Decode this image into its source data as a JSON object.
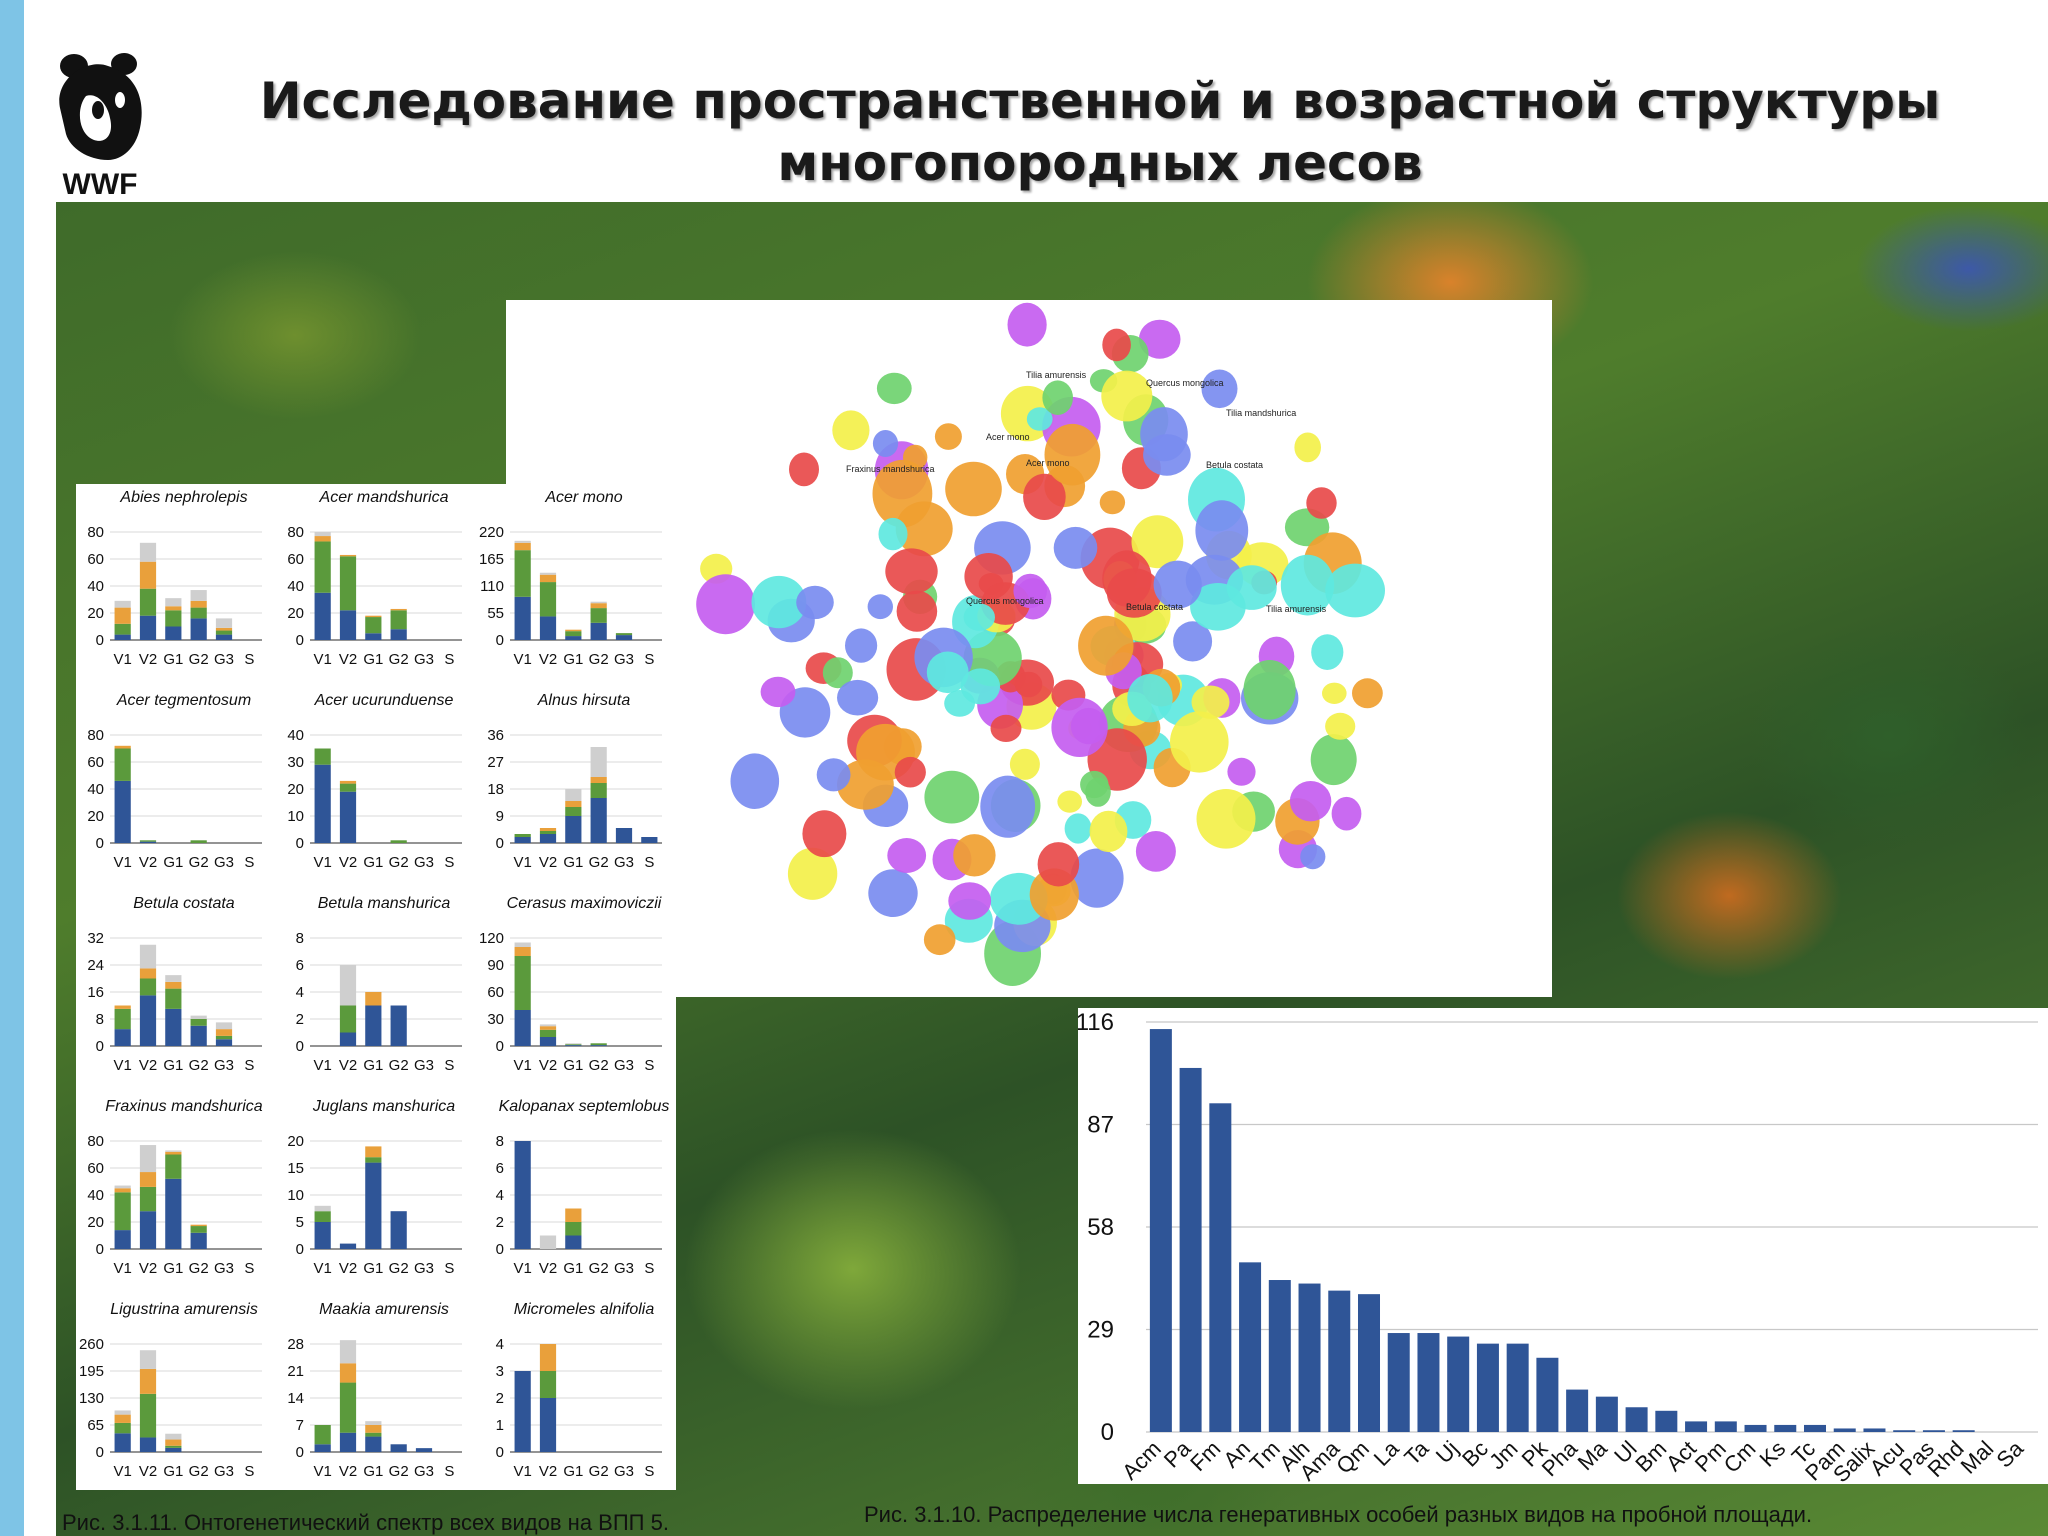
{
  "title": {
    "line1": "Исследование пространственной и возрастной структуры",
    "line2": "многопородных лесов"
  },
  "logo": {
    "text": "WWF",
    "icon": "panda-icon"
  },
  "colors": {
    "band": "#7ec4e6",
    "v_blue": "#2f5597",
    "green": "#5b9a3c",
    "orange": "#e9a03b",
    "gray": "#cfcfcf",
    "bar": "#2f5597"
  },
  "captions": {
    "left": "Рис. 3.1.11. Онтогенетический спектр всех видов на ВПП 5.",
    "right": "Рис. 3.1.10. Распределение числа генеративных особей разных видов на пробной площади."
  },
  "chart_data": [
    {
      "type": "bar",
      "stacked": true,
      "title": "",
      "categories": [
        "V1",
        "V2",
        "G1",
        "G2",
        "G3",
        "S"
      ],
      "series_order": [
        "blue",
        "green",
        "orange",
        "gray"
      ],
      "small_multiples": [
        {
          "species": "Abies nephrolepis",
          "ticks": [
            0,
            20,
            40,
            60,
            80
          ],
          "stacks": [
            [
              4,
              8,
              12,
              5
            ],
            [
              18,
              20,
              20,
              14
            ],
            [
              10,
              12,
              3,
              6
            ],
            [
              16,
              8,
              5,
              8
            ],
            [
              4,
              3,
              2,
              7
            ],
            [
              0,
              0,
              0,
              0
            ]
          ]
        },
        {
          "species": "Acer mandshurica",
          "ticks": [
            0,
            20,
            40,
            60,
            80
          ],
          "stacks": [
            [
              35,
              38,
              4,
              3
            ],
            [
              22,
              40,
              1,
              0
            ],
            [
              5,
              12,
              1,
              0
            ],
            [
              8,
              14,
              1,
              0
            ],
            [
              0,
              0,
              0,
              0
            ],
            [
              0,
              0,
              0,
              0
            ]
          ]
        },
        {
          "species": "Acer mono",
          "ticks": [
            0,
            55,
            110,
            165,
            220
          ],
          "stacks": [
            [
              88,
              95,
              15,
              4
            ],
            [
              48,
              70,
              15,
              4
            ],
            [
              8,
              10,
              3,
              0
            ],
            [
              35,
              30,
              10,
              3
            ],
            [
              10,
              4,
              0,
              0
            ],
            [
              0,
              0,
              0,
              0
            ]
          ]
        },
        {
          "species": "Acer tegmentosum",
          "ticks": [
            0,
            20,
            40,
            60,
            80
          ],
          "stacks": [
            [
              46,
              24,
              2,
              0
            ],
            [
              1,
              1,
              0,
              0
            ],
            [
              0,
              0,
              0,
              0
            ],
            [
              0,
              2,
              0,
              0
            ],
            [
              0,
              0,
              0,
              0
            ],
            [
              0,
              0,
              0,
              0
            ]
          ]
        },
        {
          "species": "Acer ucurunduense",
          "ticks": [
            0,
            10,
            20,
            30,
            40
          ],
          "stacks": [
            [
              29,
              6,
              0,
              0
            ],
            [
              19,
              3,
              1,
              0
            ],
            [
              0,
              0,
              0,
              0
            ],
            [
              0,
              1,
              0,
              0
            ],
            [
              0,
              0,
              0,
              0
            ],
            [
              0,
              0,
              0,
              0
            ]
          ]
        },
        {
          "species": "Alnus hirsuta",
          "ticks": [
            0,
            9,
            18,
            27,
            36
          ],
          "stacks": [
            [
              2,
              1,
              0,
              0
            ],
            [
              3,
              1,
              1,
              0
            ],
            [
              9,
              3,
              2,
              4
            ],
            [
              15,
              5,
              2,
              10
            ],
            [
              5,
              0,
              0,
              0
            ],
            [
              2,
              0,
              0,
              0
            ]
          ]
        },
        {
          "species": "Betula costata",
          "ticks": [
            0,
            8,
            16,
            24,
            32
          ],
          "stacks": [
            [
              5,
              6,
              1,
              0
            ],
            [
              15,
              5,
              3,
              7
            ],
            [
              11,
              6,
              2,
              2
            ],
            [
              6,
              2,
              0,
              1
            ],
            [
              2,
              1,
              2,
              2
            ],
            [
              0,
              0,
              0,
              0
            ]
          ]
        },
        {
          "species": "Betula manshurica",
          "ticks": [
            0,
            2,
            4,
            6,
            8
          ],
          "stacks": [
            [
              0,
              0,
              0,
              0
            ],
            [
              1,
              2,
              0,
              3
            ],
            [
              3,
              0,
              1,
              0
            ],
            [
              3,
              0,
              0,
              0
            ],
            [
              0,
              0,
              0,
              0
            ],
            [
              0,
              0,
              0,
              0
            ]
          ]
        },
        {
          "species": "Cerasus maximoviczii",
          "ticks": [
            0,
            30,
            60,
            90,
            120
          ],
          "stacks": [
            [
              40,
              60,
              10,
              5
            ],
            [
              10,
              8,
              4,
              2
            ],
            [
              1,
              1,
              0,
              1
            ],
            [
              1,
              2,
              0,
              0
            ],
            [
              0,
              0,
              0,
              0
            ],
            [
              0,
              0,
              0,
              0
            ]
          ]
        },
        {
          "species": "Fraxinus mandshurica",
          "ticks": [
            0,
            20,
            40,
            60,
            80
          ],
          "stacks": [
            [
              14,
              28,
              3,
              2
            ],
            [
              28,
              18,
              11,
              20
            ],
            [
              52,
              18,
              2,
              1
            ],
            [
              12,
              5,
              1,
              0
            ],
            [
              0,
              0,
              0,
              0
            ],
            [
              0,
              0,
              0,
              0
            ]
          ]
        },
        {
          "species": "Juglans manshurica",
          "ticks": [
            0,
            5,
            10,
            15,
            20
          ],
          "stacks": [
            [
              5,
              2,
              0,
              1
            ],
            [
              1,
              0,
              0,
              0
            ],
            [
              16,
              1,
              2,
              0
            ],
            [
              7,
              0,
              0,
              0
            ],
            [
              0,
              0,
              0,
              0
            ],
            [
              0,
              0,
              0,
              0
            ]
          ]
        },
        {
          "species": "Kalopanax septemlobus",
          "ticks": [
            0,
            2,
            4,
            6,
            8
          ],
          "stacks": [
            [
              8,
              0,
              0,
              0
            ],
            [
              0,
              0,
              0,
              1
            ],
            [
              1,
              1,
              1,
              0
            ],
            [
              0,
              0,
              0,
              0
            ],
            [
              0,
              0,
              0,
              0
            ],
            [
              0,
              0,
              0,
              0
            ]
          ]
        },
        {
          "species": "Ligustrina amurensis",
          "ticks": [
            0,
            65,
            130,
            195,
            260
          ],
          "stacks": [
            [
              45,
              25,
              20,
              10
            ],
            [
              35,
              105,
              60,
              45
            ],
            [
              10,
              5,
              15,
              14
            ],
            [
              0,
              0,
              0,
              0
            ],
            [
              0,
              0,
              0,
              0
            ],
            [
              0,
              0,
              0,
              0
            ]
          ]
        },
        {
          "species": "Maakia amurensis",
          "ticks": [
            0,
            7,
            14,
            21,
            28
          ],
          "stacks": [
            [
              2,
              5,
              0,
              0
            ],
            [
              5,
              13,
              5,
              6
            ],
            [
              4,
              1,
              2,
              1
            ],
            [
              2,
              0,
              0,
              0
            ],
            [
              1,
              0,
              0,
              0
            ],
            [
              0,
              0,
              0,
              0
            ]
          ]
        },
        {
          "species": "Micromeles alnifolia",
          "ticks": [
            0,
            1,
            2,
            3,
            4
          ],
          "stacks": [
            [
              3,
              0,
              0,
              0
            ],
            [
              2,
              1,
              1,
              0
            ],
            [
              0,
              0,
              0,
              0
            ],
            [
              0,
              0,
              0,
              0
            ],
            [
              0,
              0,
              0,
              0
            ],
            [
              0,
              0,
              0,
              0
            ]
          ]
        }
      ]
    },
    {
      "type": "scatter",
      "title": "",
      "description_labels": [
        "Tilia amurensis",
        "Quercus mongolica",
        "Tilia mandshurica",
        "Acer mono",
        "Acer mono",
        "Betula costata",
        "Fraxinus mandshurica",
        "Quercus mongolica",
        "Betula costata",
        "Tilia amurensis"
      ],
      "palette": [
        "#e84a4a",
        "#c45df0",
        "#f3f04a",
        "#6fd36f",
        "#5ee8e0",
        "#f0a030",
        "#7a8cf0"
      ]
    },
    {
      "type": "bar",
      "title": "",
      "categories": [
        "Acm",
        "Pa",
        "Fm",
        "An",
        "Tm",
        "Alh",
        "Ama",
        "Qm",
        "La",
        "Ta",
        "Uj",
        "Bc",
        "Jm",
        "Pk",
        "Pha",
        "Ma",
        "Ul",
        "Bm",
        "Act",
        "Pm",
        "Cm",
        "Ks",
        "Tc",
        "Pam",
        "Salix",
        "Acu",
        "Pas",
        "Rhd",
        "Mal",
        "Sa"
      ],
      "values": [
        114,
        103,
        93,
        48,
        43,
        42,
        40,
        39,
        28,
        28,
        27,
        25,
        25,
        21,
        12,
        10,
        7,
        6,
        3,
        3,
        2,
        2,
        2,
        1,
        1,
        0.5,
        0.5,
        0.5,
        0,
        0
      ],
      "y_ticks": [
        0,
        29,
        58,
        87,
        116
      ],
      "ylim": [
        0,
        116
      ]
    }
  ]
}
